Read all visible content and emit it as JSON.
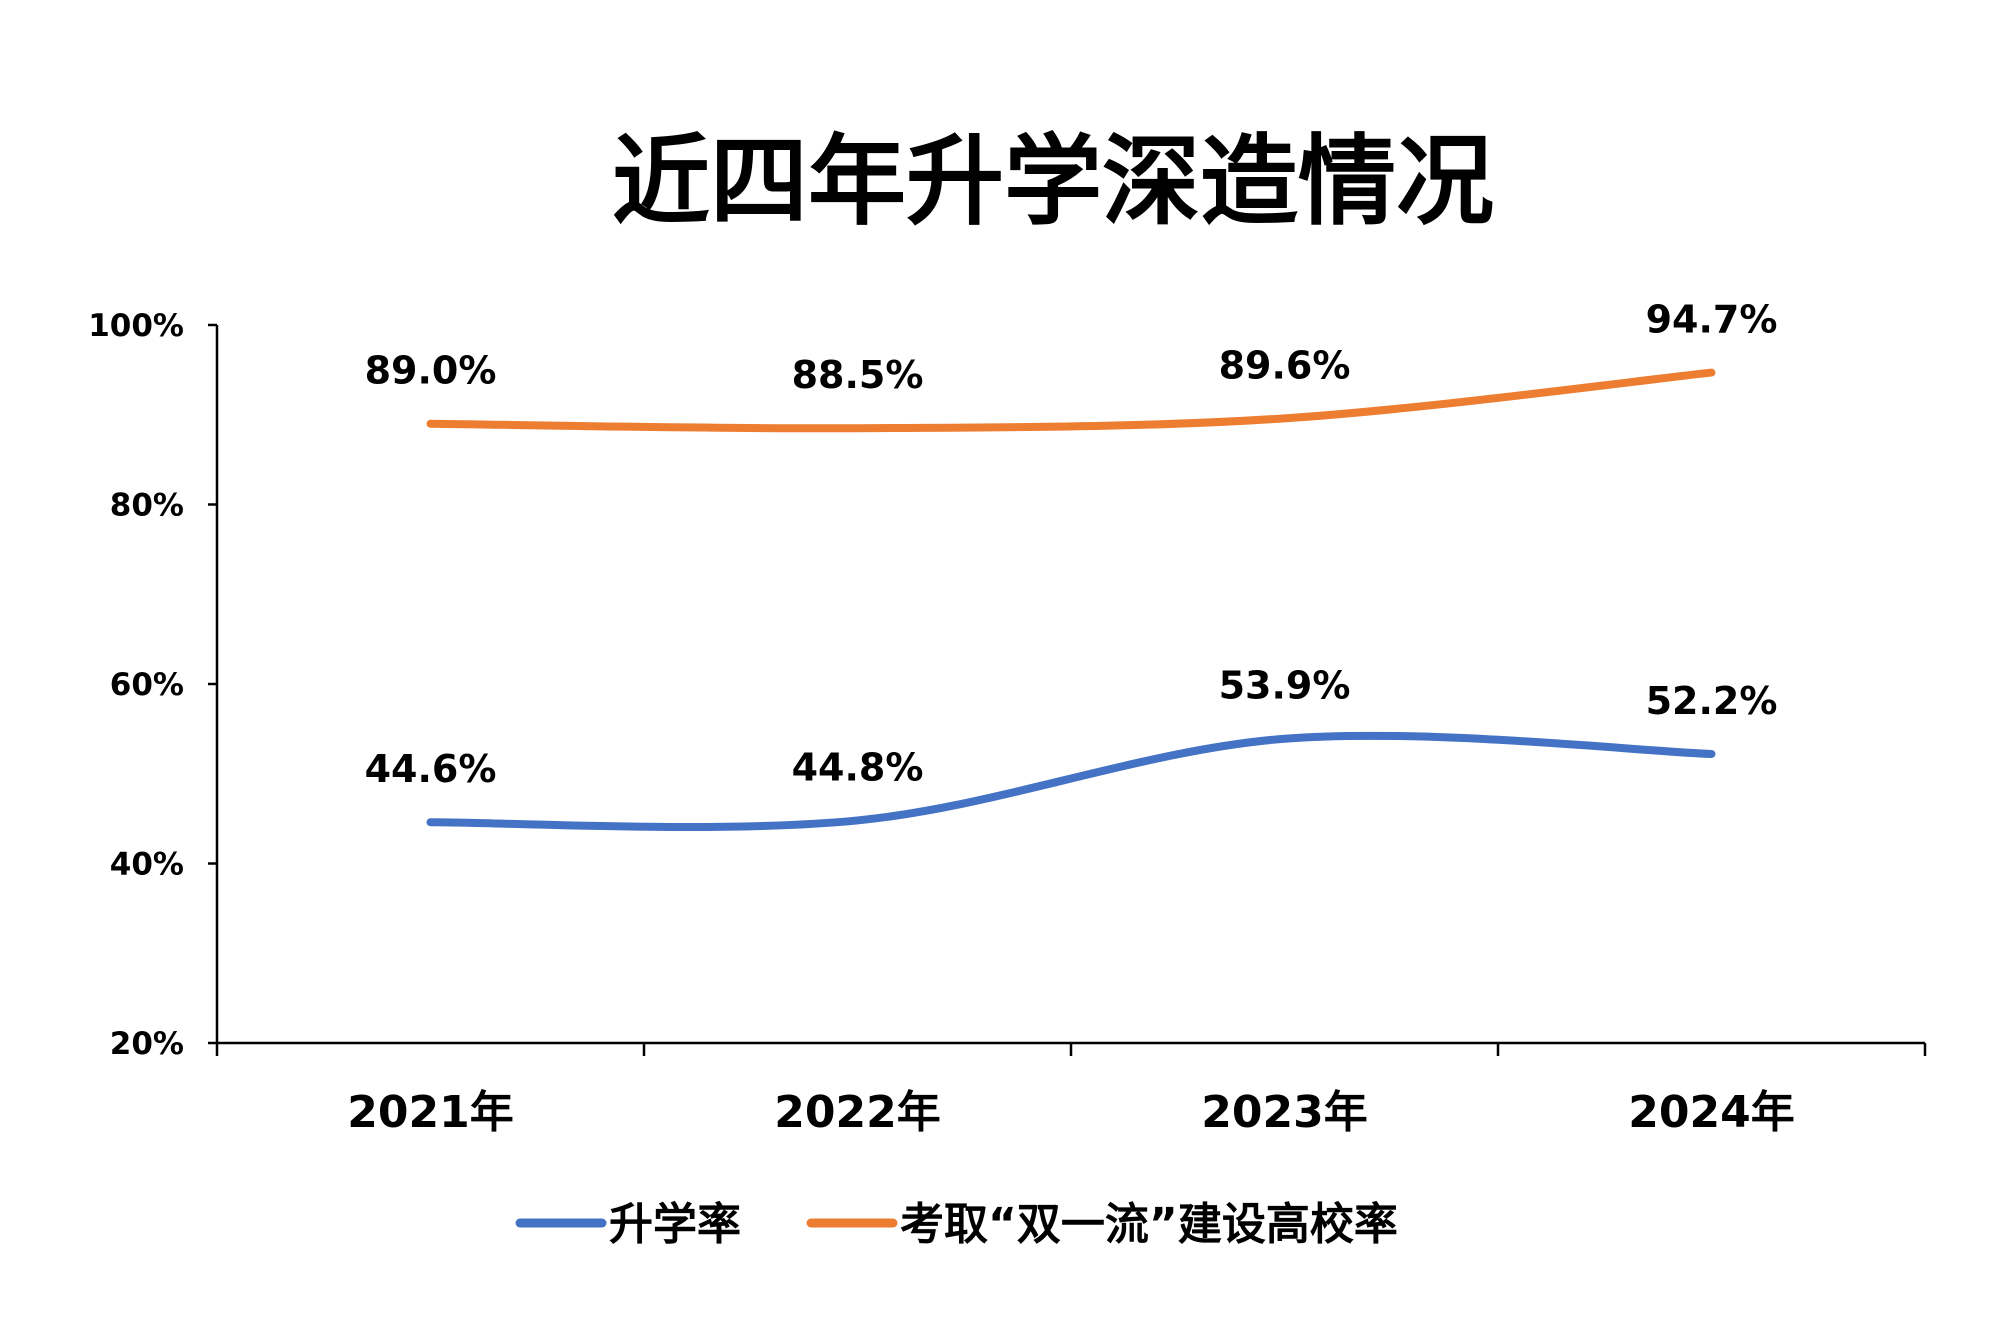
{
  "chart_data": {
    "type": "line",
    "title": "近四年升学深造情况",
    "categories": [
      "2021年",
      "2022年",
      "2023年",
      "2024年"
    ],
    "series": [
      {
        "name": "升学率",
        "values": [
          44.6,
          44.8,
          53.9,
          52.2
        ],
        "labels": [
          "44.6%",
          "44.8%",
          "53.9%",
          "52.2%"
        ],
        "color": "#4472C4"
      },
      {
        "name": "考取“双一流”建设高校率",
        "values": [
          89.0,
          88.5,
          89.6,
          94.7
        ],
        "labels": [
          "89.0%",
          "88.5%",
          "89.6%",
          "94.7%"
        ],
        "color": "#ED7D31"
      }
    ],
    "ylim": [
      20,
      100
    ],
    "yticks": [
      "20%",
      "40%",
      "60%",
      "80%",
      "100%"
    ],
    "smooth": true,
    "grid": false,
    "legend": "bottom"
  }
}
